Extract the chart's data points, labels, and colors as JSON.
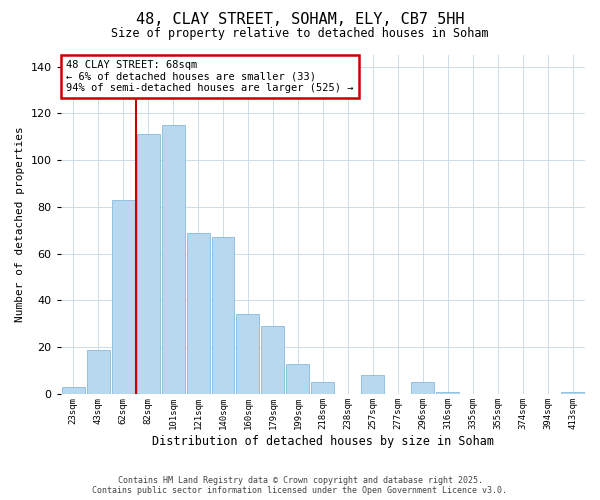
{
  "title": "48, CLAY STREET, SOHAM, ELY, CB7 5HH",
  "subtitle": "Size of property relative to detached houses in Soham",
  "xlabel": "Distribution of detached houses by size in Soham",
  "ylabel": "Number of detached properties",
  "bar_labels": [
    "23sqm",
    "43sqm",
    "62sqm",
    "82sqm",
    "101sqm",
    "121sqm",
    "140sqm",
    "160sqm",
    "179sqm",
    "199sqm",
    "218sqm",
    "238sqm",
    "257sqm",
    "277sqm",
    "296sqm",
    "316sqm",
    "335sqm",
    "355sqm",
    "374sqm",
    "394sqm",
    "413sqm"
  ],
  "bar_values": [
    3,
    19,
    83,
    111,
    115,
    69,
    67,
    34,
    29,
    13,
    5,
    0,
    8,
    0,
    5,
    1,
    0,
    0,
    0,
    0,
    1
  ],
  "bar_color": "#b8d8f0",
  "bar_edge_color": "#88bbdd",
  "vline_x_index": 2,
  "vline_color": "#cc0000",
  "ylim": [
    0,
    145
  ],
  "yticks": [
    0,
    20,
    40,
    60,
    80,
    100,
    120,
    140
  ],
  "annotation_title": "48 CLAY STREET: 68sqm",
  "annotation_line1": "← 6% of detached houses are smaller (33)",
  "annotation_line2": "94% of semi-detached houses are larger (525) →",
  "annotation_box_color": "#ffffff",
  "annotation_box_edge_color": "#cc0000",
  "footer_line1": "Contains HM Land Registry data © Crown copyright and database right 2025.",
  "footer_line2": "Contains public sector information licensed under the Open Government Licence v3.0.",
  "background_color": "#ffffff",
  "grid_color": "#ccdde8"
}
